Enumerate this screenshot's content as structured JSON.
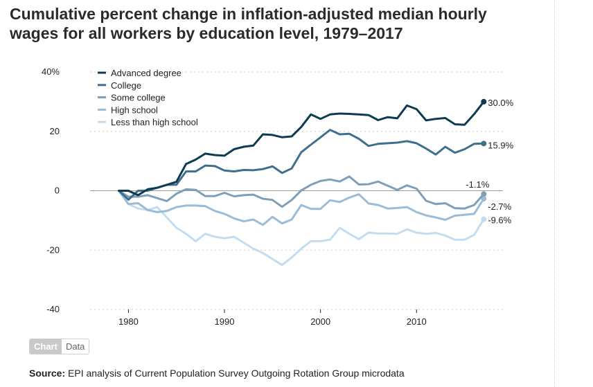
{
  "title": "Cumulative percent change in inflation-adjusted median hourly wages for all workers by education level, 1979–2017",
  "toggle": {
    "chart_label": "Chart",
    "data_label": "Data"
  },
  "source": {
    "label": "Source:",
    "text": "EPI analysis of Current Population Survey Outgoing Rotation Group microdata"
  },
  "chart_data": {
    "type": "line",
    "title": "Cumulative percent change in inflation-adjusted median hourly wages for all workers by education level, 1979–2017",
    "xlabel": "",
    "ylabel": "",
    "xlim": [
      1976,
      2019
    ],
    "ylim": [
      -40,
      40
    ],
    "x_ticks": [
      1980,
      1990,
      2000,
      2010
    ],
    "y_ticks": [
      40,
      20,
      0,
      -20,
      -40
    ],
    "y_tick_labels": [
      "40%",
      "20",
      "0",
      "-20",
      "-40"
    ],
    "grid": "dotted horizontal",
    "legend_position": "top-left",
    "x": [
      1979,
      1980,
      1981,
      1982,
      1983,
      1984,
      1985,
      1986,
      1987,
      1988,
      1989,
      1990,
      1991,
      1992,
      1993,
      1994,
      1995,
      1996,
      1997,
      1998,
      1999,
      2000,
      2001,
      2002,
      2003,
      2004,
      2005,
      2006,
      2007,
      2008,
      2009,
      2010,
      2011,
      2012,
      2013,
      2014,
      2015,
      2016,
      2017
    ],
    "series": [
      {
        "name": "Advanced degree",
        "color": "#0d3b52",
        "end_label": "30.0%",
        "values": [
          0,
          0,
          -1.5,
          0.5,
          1,
          2,
          3,
          9,
          10.5,
          12.5,
          12,
          11.8,
          14,
          14.8,
          15.2,
          19,
          18.8,
          18,
          18.3,
          21.5,
          25.7,
          24.2,
          25.7,
          26,
          25.9,
          25.7,
          25.5,
          23.8,
          24.8,
          24.4,
          28.7,
          27.5,
          23.7,
          24.2,
          24.5,
          22.4,
          22.2,
          25.8,
          30.0
        ]
      },
      {
        "name": "College",
        "color": "#3f6f8d",
        "end_label": "15.9%",
        "values": [
          0,
          -3,
          0,
          0,
          1,
          2,
          2,
          6.5,
          6.5,
          8.5,
          8.3,
          6.8,
          6.5,
          7,
          6.9,
          7.3,
          8.2,
          6,
          7.5,
          13,
          15.5,
          18,
          20.5,
          19,
          19.2,
          17.5,
          15.1,
          15.8,
          16,
          16.2,
          16.7,
          16,
          14.2,
          12.2,
          14.8,
          12.8,
          14,
          15.8,
          15.9
        ]
      },
      {
        "name": "Some college",
        "color": "#7f9fb7",
        "end_label": "-1.1%",
        "values": [
          0,
          -2,
          -2,
          -1.5,
          -2.5,
          -3.5,
          -1,
          0.5,
          0.3,
          -1.8,
          -1.8,
          -0.7,
          -1.9,
          -1.5,
          -1.3,
          -2.7,
          -3.1,
          -5.4,
          -3.1,
          0.1,
          2,
          3.3,
          3.8,
          3.1,
          4.8,
          2.1,
          2.2,
          3.1,
          1.7,
          0.3,
          1.8,
          0.7,
          -3.4,
          -4.5,
          -4.2,
          -5.9,
          -6,
          -4.8,
          -1.1
        ]
      },
      {
        "name": "High school",
        "color": "#9bbcd6",
        "end_label": "-2.7%",
        "values": [
          0,
          -4.5,
          -4.2,
          -6.5,
          -7.2,
          -6.8,
          -5.5,
          -5,
          -5,
          -5.2,
          -6.8,
          -7.8,
          -9.3,
          -10.3,
          -9.7,
          -11.5,
          -8.8,
          -11,
          -9.7,
          -4.8,
          -6.1,
          -6.1,
          -3.2,
          -3.8,
          -2.3,
          -1.2,
          -4.3,
          -4.8,
          -6,
          -5.8,
          -5.5,
          -7.2,
          -8.3,
          -9,
          -9.8,
          -8.4,
          -8.1,
          -7.8,
          -2.7
        ]
      },
      {
        "name": "Less than high school",
        "color": "#c3ddf0",
        "end_label": "-9.6%",
        "values": [
          0,
          -4.5,
          -6,
          -6.5,
          -5.5,
          -9,
          -12.5,
          -14.5,
          -17,
          -14.5,
          -15.5,
          -16,
          -15.5,
          -17.5,
          -19.5,
          -21,
          -23,
          -25,
          -22.5,
          -19.5,
          -17,
          -17,
          -16.5,
          -12.5,
          -14.5,
          -16.3,
          -14.1,
          -14.4,
          -14.4,
          -14.5,
          -13,
          -14.1,
          -14.5,
          -14.2,
          -15.1,
          -16.5,
          -16.5,
          -14.9,
          -9.6
        ]
      }
    ]
  }
}
